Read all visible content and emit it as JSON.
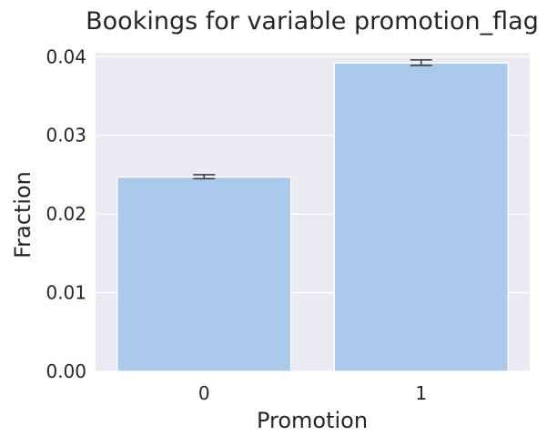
{
  "chart_data": {
    "type": "bar",
    "title": "Bookings for variable promotion_flag",
    "xlabel": "Promotion",
    "ylabel": "Fraction",
    "categories": [
      "0",
      "1"
    ],
    "values": [
      0.0247,
      0.0392
    ],
    "error_bars": [
      {
        "low": 0.0245,
        "high": 0.025
      },
      {
        "low": 0.0389,
        "high": 0.0396
      }
    ],
    "ylim": [
      0,
      0.0405
    ],
    "yticks": [
      0.0,
      0.01,
      0.02,
      0.03,
      0.04
    ],
    "ytick_labels": [
      "0.00",
      "0.01",
      "0.02",
      "0.03",
      "0.04"
    ],
    "grid": true,
    "legend": "none"
  },
  "colors": {
    "plot_background": "#eaeaf2",
    "grid": "#ffffff",
    "bar_fill": "#abc9ea",
    "bar_edge": "#ffffff",
    "error_bar": "#404040",
    "text": "#262626"
  }
}
